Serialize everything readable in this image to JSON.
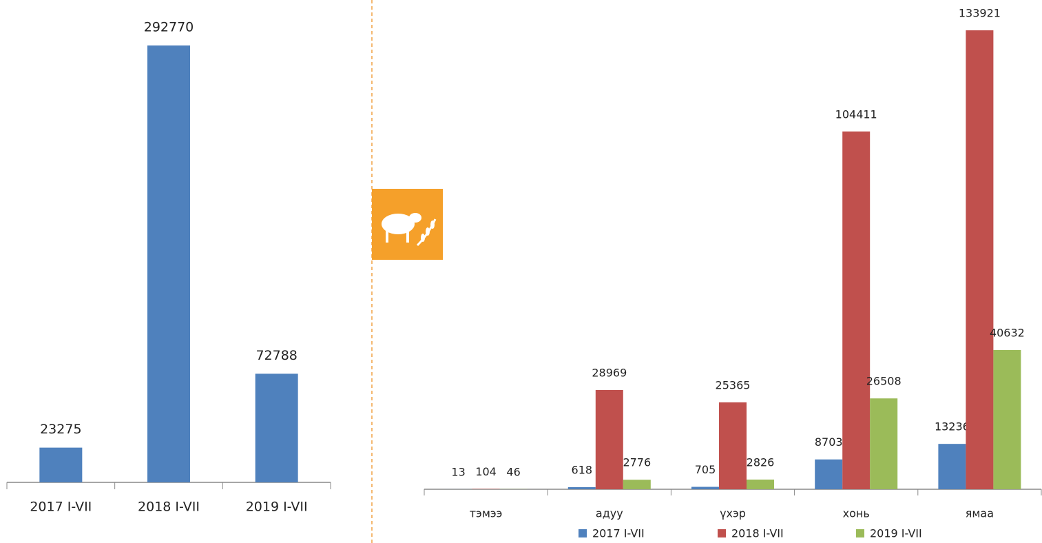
{
  "chart_data": [
    {
      "type": "bar",
      "categories": [
        "2017 I-VII",
        "2018 I-VII",
        "2019 I-VII"
      ],
      "values": [
        23275,
        292770,
        72788
      ],
      "color": "#4f81bd"
    },
    {
      "type": "bar",
      "categories": [
        "тэмээ",
        "адуу",
        "үхэр",
        "хонь",
        "ямаа"
      ],
      "series": [
        {
          "name": "2017 I-VII",
          "color": "#4f81bd",
          "values": [
            13,
            618,
            705,
            8703,
            13236
          ]
        },
        {
          "name": "2018 I-VII",
          "color": "#c0504d",
          "values": [
            104,
            28969,
            25365,
            104411,
            133921
          ]
        },
        {
          "name": "2019 I-VII",
          "color": "#9bbb59",
          "values": [
            46,
            2776,
            2826,
            26508,
            40632
          ]
        }
      ],
      "legend": "bottom"
    }
  ]
}
